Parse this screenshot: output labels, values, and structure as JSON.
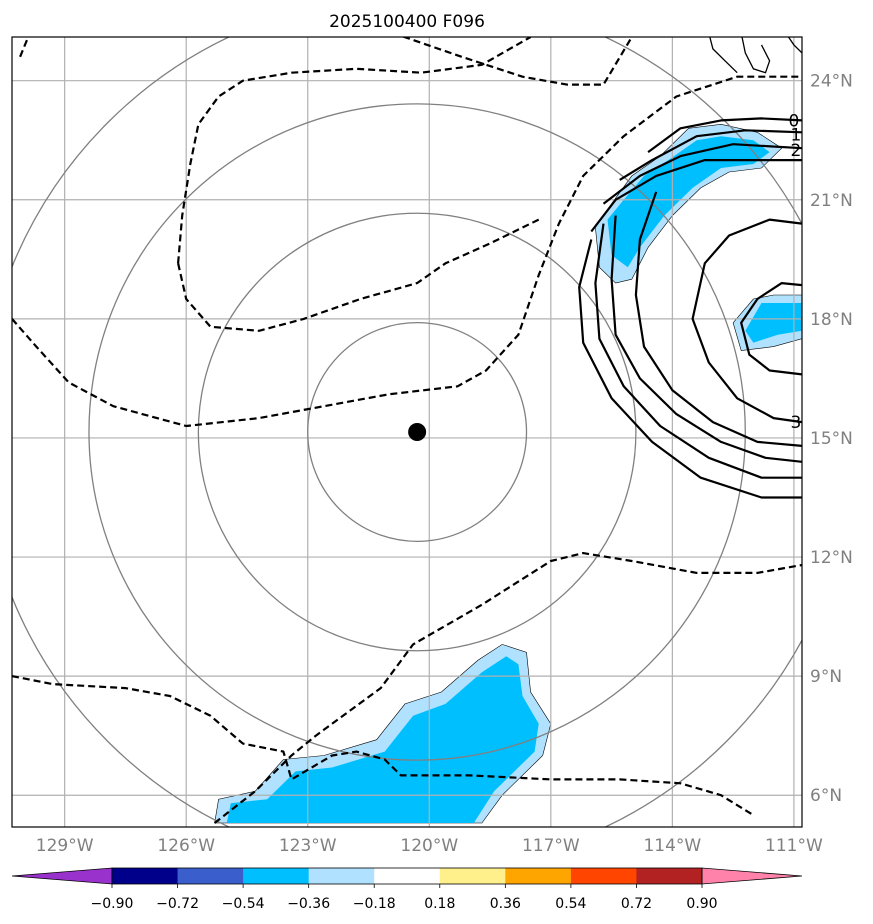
{
  "chart_data": {
    "type": "contour_map",
    "title": "2025100400 F096",
    "projection": "lat-lon map",
    "xlim": [
      -130.3,
      -110.8
    ],
    "ylim": [
      5.2,
      25.1
    ],
    "x_ticks": [
      {
        "value": -129,
        "label": "129°W"
      },
      {
        "value": -126,
        "label": "126°W"
      },
      {
        "value": -123,
        "label": "123°W"
      },
      {
        "value": -120,
        "label": "120°W"
      },
      {
        "value": -117,
        "label": "117°W"
      },
      {
        "value": -114,
        "label": "114°W"
      },
      {
        "value": -111,
        "label": "111°W"
      }
    ],
    "y_ticks": [
      {
        "value": 6,
        "label": "6°N"
      },
      {
        "value": 9,
        "label": "9°N"
      },
      {
        "value": 12,
        "label": "12°N"
      },
      {
        "value": 15,
        "label": "15°N"
      },
      {
        "value": 18,
        "label": "18°N"
      },
      {
        "value": 21,
        "label": "21°N"
      },
      {
        "value": 24,
        "label": "24°N"
      }
    ],
    "grid": true,
    "storm_center": {
      "lon": -120.3,
      "lat": 15.15
    },
    "range_ring_radii_deg": [
      2.7,
      5.4,
      8.1,
      10.8
    ],
    "contour_labels": [
      {
        "text": "0",
        "lon": -111.0,
        "lat": 23.0
      },
      {
        "text": "1",
        "lon": -110.95,
        "lat": 22.65
      },
      {
        "text": "2",
        "lon": -110.95,
        "lat": 22.25
      },
      {
        "text": "3",
        "lon": -110.95,
        "lat": 15.4
      }
    ],
    "colorbar": {
      "orientation": "horizontal",
      "boundaries": [
        -1.08,
        -0.9,
        -0.72,
        -0.54,
        -0.36,
        -0.18,
        0.18,
        0.36,
        0.54,
        0.72,
        0.9,
        1.08
      ],
      "colors": [
        "#9932cc",
        "#00008b",
        "#3a5fcd",
        "#00bfff",
        "#b0e2ff",
        "#ffffff",
        "#fff08c",
        "#ffa500",
        "#ff4500",
        "#b22222",
        "#ff82ab"
      ],
      "extend": "both",
      "tick_labels": [
        "−0.90",
        "−0.72",
        "−0.54",
        "−0.36",
        "−0.18",
        "0.18",
        "0.36",
        "0.54",
        "0.72",
        "0.90"
      ]
    },
    "shaded_regions": [
      {
        "level": "light",
        "color": "#b0e2ff",
        "polygon": [
          [
            -115.5,
            20.9
          ],
          [
            -115.0,
            21.6
          ],
          [
            -114.3,
            22.1
          ],
          [
            -113.6,
            22.8
          ],
          [
            -112.8,
            22.9
          ],
          [
            -111.9,
            22.7
          ],
          [
            -111.3,
            22.3
          ],
          [
            -111.8,
            21.8
          ],
          [
            -112.6,
            21.7
          ],
          [
            -113.3,
            21.3
          ],
          [
            -114.0,
            20.6
          ],
          [
            -114.6,
            19.8
          ],
          [
            -115.0,
            19.0
          ],
          [
            -115.4,
            18.9
          ],
          [
            -115.8,
            19.3
          ],
          [
            -115.9,
            20.3
          ]
        ]
      },
      {
        "level": "medium",
        "color": "#00bfff",
        "polygon": [
          [
            -115.2,
            21.0
          ],
          [
            -114.7,
            21.6
          ],
          [
            -114.1,
            22.0
          ],
          [
            -113.4,
            22.5
          ],
          [
            -112.8,
            22.6
          ],
          [
            -112.0,
            22.5
          ],
          [
            -111.6,
            22.2
          ],
          [
            -112.0,
            21.9
          ],
          [
            -112.8,
            21.8
          ],
          [
            -113.5,
            21.3
          ],
          [
            -114.2,
            20.6
          ],
          [
            -114.8,
            19.8
          ],
          [
            -115.1,
            19.3
          ],
          [
            -115.5,
            19.6
          ],
          [
            -115.6,
            20.5
          ]
        ]
      },
      {
        "level": "light",
        "color": "#b0e2ff",
        "polygon": [
          [
            -112.5,
            17.9
          ],
          [
            -112.0,
            18.5
          ],
          [
            -111.5,
            18.6
          ],
          [
            -110.8,
            18.6
          ],
          [
            -110.8,
            17.5
          ],
          [
            -111.5,
            17.3
          ],
          [
            -112.3,
            17.2
          ]
        ]
      },
      {
        "level": "medium",
        "color": "#00bfff",
        "polygon": [
          [
            -112.2,
            17.7
          ],
          [
            -111.8,
            18.4
          ],
          [
            -111.3,
            18.4
          ],
          [
            -110.8,
            18.4
          ],
          [
            -110.8,
            17.7
          ],
          [
            -111.4,
            17.6
          ],
          [
            -112.0,
            17.4
          ]
        ]
      },
      {
        "level": "light",
        "color": "#b0e2ff",
        "polygon": [
          [
            -125.3,
            5.3
          ],
          [
            -125.2,
            5.9
          ],
          [
            -124.3,
            6.1
          ],
          [
            -123.6,
            6.9
          ],
          [
            -122.6,
            7.0
          ],
          [
            -121.3,
            7.4
          ],
          [
            -120.6,
            8.3
          ],
          [
            -119.7,
            8.6
          ],
          [
            -118.8,
            9.4
          ],
          [
            -118.2,
            9.8
          ],
          [
            -117.6,
            9.6
          ],
          [
            -117.5,
            8.6
          ],
          [
            -117.0,
            7.8
          ],
          [
            -117.2,
            7.0
          ],
          [
            -118.2,
            6.0
          ],
          [
            -118.7,
            5.3
          ]
        ]
      },
      {
        "level": "medium",
        "color": "#00bfff",
        "polygon": [
          [
            -125.0,
            5.3
          ],
          [
            -124.9,
            5.8
          ],
          [
            -124.0,
            5.9
          ],
          [
            -123.3,
            6.6
          ],
          [
            -122.4,
            6.7
          ],
          [
            -121.1,
            7.1
          ],
          [
            -120.4,
            8.0
          ],
          [
            -119.6,
            8.3
          ],
          [
            -118.7,
            9.1
          ],
          [
            -118.1,
            9.5
          ],
          [
            -117.8,
            9.3
          ],
          [
            -117.7,
            8.5
          ],
          [
            -117.3,
            7.8
          ],
          [
            -117.4,
            7.1
          ],
          [
            -118.4,
            6.1
          ],
          [
            -118.9,
            5.3
          ]
        ]
      }
    ],
    "solid_contours": [
      [
        [
          -114.6,
          22.2
        ],
        [
          -113.8,
          22.8
        ],
        [
          -112.8,
          23.0
        ],
        [
          -111.8,
          23.05
        ],
        [
          -110.8,
          23.0
        ]
      ],
      [
        [
          -115.3,
          21.5
        ],
        [
          -114.5,
          22.0
        ],
        [
          -113.4,
          22.6
        ],
        [
          -112.2,
          22.75
        ],
        [
          -110.8,
          22.7
        ]
      ],
      [
        [
          -115.7,
          20.9
        ],
        [
          -114.8,
          21.6
        ],
        [
          -113.8,
          22.1
        ],
        [
          -112.5,
          22.4
        ],
        [
          -110.8,
          22.3
        ]
      ],
      [
        [
          -116.0,
          20.2
        ],
        [
          -115.4,
          21.0
        ],
        [
          -114.4,
          21.6
        ],
        [
          -113.2,
          22.0
        ],
        [
          -110.8,
          22.0
        ]
      ],
      [
        [
          -116.0,
          20.0
        ],
        [
          -116.3,
          18.8
        ],
        [
          -116.2,
          17.4
        ],
        [
          -115.5,
          16.0
        ],
        [
          -114.5,
          14.9
        ],
        [
          -113.3,
          14.0
        ],
        [
          -111.8,
          13.5
        ],
        [
          -110.8,
          13.5
        ]
      ],
      [
        [
          -115.7,
          20.4
        ],
        [
          -115.9,
          18.9
        ],
        [
          -115.8,
          17.5
        ],
        [
          -115.2,
          16.3
        ],
        [
          -114.3,
          15.3
        ],
        [
          -113.1,
          14.5
        ],
        [
          -111.8,
          14.0
        ],
        [
          -110.8,
          14.0
        ]
      ],
      [
        [
          -115.4,
          20.6
        ],
        [
          -115.5,
          19.0
        ],
        [
          -115.4,
          17.6
        ],
        [
          -114.8,
          16.5
        ],
        [
          -113.9,
          15.6
        ],
        [
          -112.8,
          14.9
        ],
        [
          -111.7,
          14.5
        ],
        [
          -110.8,
          14.4
        ]
      ],
      [
        [
          -114.4,
          21.2
        ],
        [
          -114.8,
          20.0
        ],
        [
          -114.9,
          18.6
        ],
        [
          -114.7,
          17.3
        ],
        [
          -114.0,
          16.2
        ],
        [
          -113.0,
          15.4
        ],
        [
          -111.9,
          14.9
        ],
        [
          -110.8,
          14.8
        ]
      ],
      [
        [
          -110.8,
          20.4
        ],
        [
          -111.6,
          20.5
        ],
        [
          -112.6,
          20.1
        ],
        [
          -113.2,
          19.4
        ],
        [
          -113.5,
          18.0
        ],
        [
          -113.1,
          16.9
        ],
        [
          -112.4,
          16.0
        ],
        [
          -111.5,
          15.5
        ],
        [
          -110.8,
          15.4
        ]
      ],
      [
        [
          -110.8,
          18.85
        ],
        [
          -111.3,
          18.9
        ],
        [
          -111.9,
          18.5
        ],
        [
          -112.3,
          17.9
        ],
        [
          -112.1,
          17.1
        ],
        [
          -111.6,
          16.7
        ],
        [
          -110.8,
          16.6
        ]
      ]
    ],
    "dashed_contours": [
      [
        [
          -125.3,
          5.3
        ],
        [
          -124.3,
          6.1
        ],
        [
          -123.4,
          7.0
        ],
        [
          -122.8,
          7.5
        ],
        [
          -121.2,
          8.7
        ],
        [
          -120.4,
          9.8
        ],
        [
          -118.7,
          10.8
        ],
        [
          -117.0,
          11.9
        ],
        [
          -116.2,
          12.1
        ],
        [
          -115.0,
          11.9
        ],
        [
          -113.4,
          11.6
        ],
        [
          -111.9,
          11.6
        ],
        [
          -110.8,
          11.8
        ]
      ],
      [
        [
          -130.3,
          9.0
        ],
        [
          -129.3,
          8.8
        ],
        [
          -127.5,
          8.7
        ],
        [
          -126.4,
          8.5
        ],
        [
          -125.4,
          8.0
        ],
        [
          -124.6,
          7.3
        ],
        [
          -123.6,
          7.1
        ],
        [
          -123.4,
          6.4
        ],
        [
          -122.4,
          7.0
        ],
        [
          -121.8,
          7.1
        ],
        [
          -121.1,
          6.9
        ],
        [
          -120.7,
          6.5
        ],
        [
          -119.0,
          6.5
        ],
        [
          -117.0,
          6.4
        ],
        [
          -115.3,
          6.4
        ],
        [
          -113.8,
          6.3
        ],
        [
          -112.8,
          6.0
        ],
        [
          -112.0,
          5.5
        ]
      ],
      [
        [
          -130.3,
          18.0
        ],
        [
          -129.7,
          17.3
        ],
        [
          -128.9,
          16.4
        ],
        [
          -127.8,
          15.8
        ],
        [
          -126.0,
          15.3
        ],
        [
          -124.2,
          15.5
        ],
        [
          -122.6,
          15.8
        ],
        [
          -121.0,
          16.1
        ],
        [
          -119.3,
          16.3
        ],
        [
          -118.6,
          16.7
        ],
        [
          -117.8,
          17.6
        ],
        [
          -117.3,
          19.1
        ],
        [
          -116.8,
          20.4
        ],
        [
          -116.2,
          21.6
        ],
        [
          -115.2,
          22.6
        ],
        [
          -113.9,
          23.6
        ],
        [
          -112.4,
          24.1
        ],
        [
          -110.8,
          24.1
        ]
      ],
      [
        [
          -130.1,
          24.6
        ],
        [
          -129.9,
          25.1
        ]
      ],
      [
        [
          -120.9,
          25.2
        ],
        [
          -119.2,
          24.6
        ],
        [
          -117.7,
          24.1
        ],
        [
          -116.6,
          23.9
        ],
        [
          -115.7,
          23.9
        ],
        [
          -115.0,
          25.1
        ]
      ],
      [
        [
          -126.2,
          19.4
        ],
        [
          -126.1,
          20.6
        ],
        [
          -125.9,
          21.9
        ],
        [
          -125.7,
          22.9
        ],
        [
          -125.2,
          23.6
        ],
        [
          -124.6,
          24.0
        ],
        [
          -123.4,
          24.2
        ],
        [
          -121.8,
          24.3
        ],
        [
          -120.2,
          24.2
        ],
        [
          -118.7,
          24.4
        ],
        [
          -117.5,
          25.1
        ]
      ],
      [
        [
          -126.2,
          19.4
        ],
        [
          -126.0,
          18.5
        ],
        [
          -125.4,
          17.8
        ],
        [
          -124.2,
          17.7
        ],
        [
          -123.1,
          18.0
        ],
        [
          -121.7,
          18.5
        ],
        [
          -120.3,
          18.9
        ],
        [
          -119.6,
          19.4
        ],
        [
          -118.5,
          19.9
        ],
        [
          -117.3,
          20.5
        ]
      ]
    ],
    "coastline": [
      [
        [
          -113.1,
          25.2
        ],
        [
          -113.0,
          24.8
        ],
        [
          -112.7,
          24.5
        ],
        [
          -112.4,
          24.2
        ]
      ],
      [
        [
          -112.3,
          25.2
        ],
        [
          -112.2,
          24.7
        ],
        [
          -112.0,
          24.3
        ],
        [
          -111.7,
          24.2
        ],
        [
          -111.6,
          24.5
        ],
        [
          -111.8,
          24.9
        ]
      ],
      [
        [
          -111.2,
          25.2
        ],
        [
          -111.0,
          24.9
        ],
        [
          -110.8,
          24.7
        ]
      ]
    ]
  }
}
